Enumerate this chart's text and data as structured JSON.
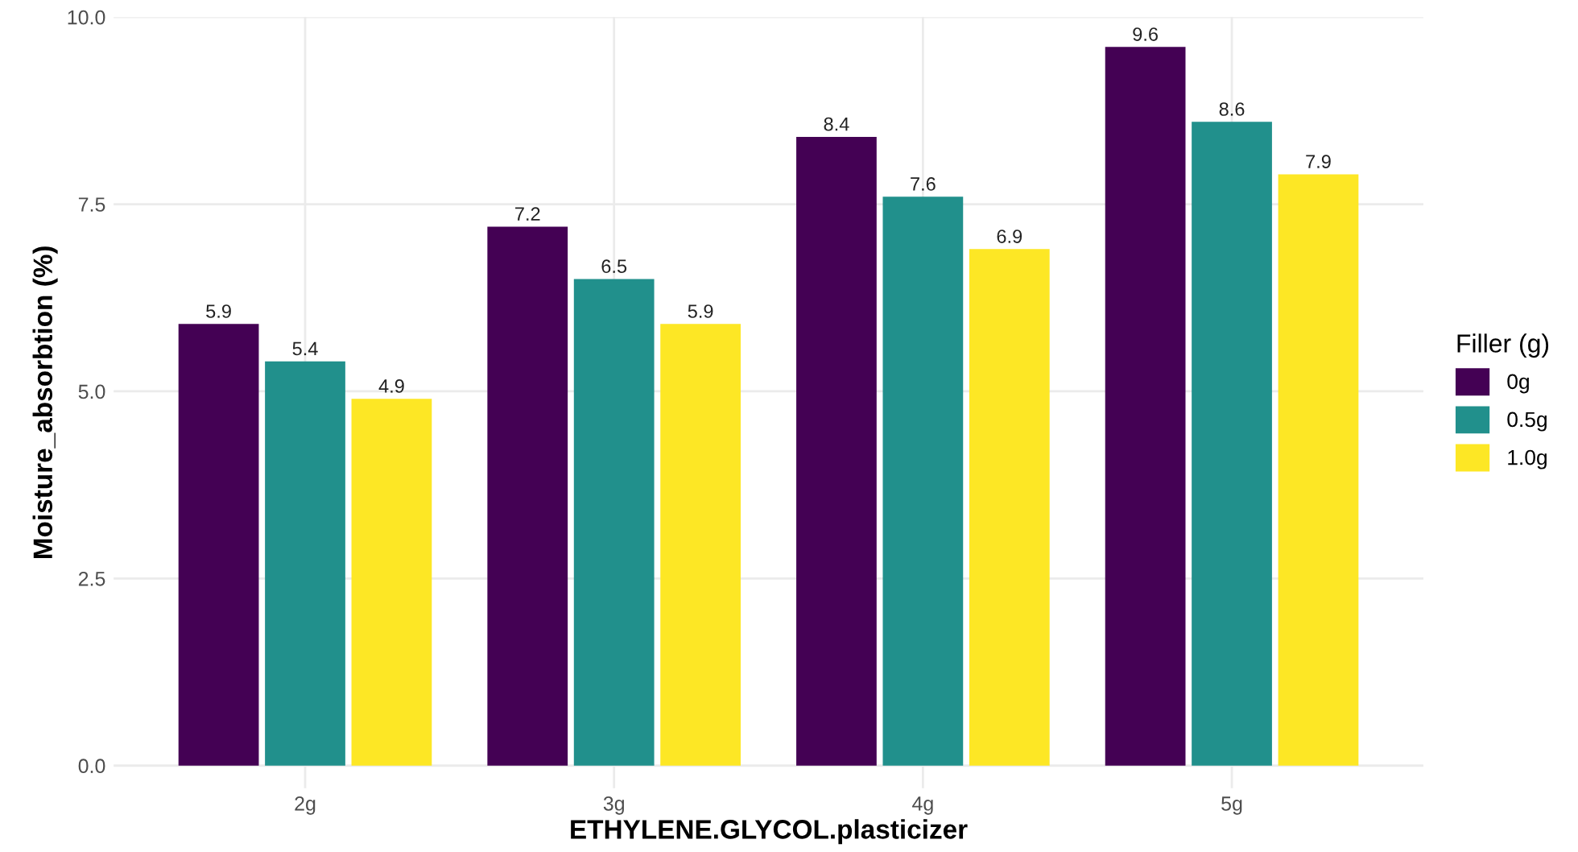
{
  "chart_data": {
    "type": "bar",
    "xlabel": "ETHYLENE.GLYCOL.plasticizer",
    "ylabel": "Moisture_absorbtion (%)",
    "legend_title": "Filler (g)",
    "categories": [
      "2g",
      "3g",
      "4g",
      "5g"
    ],
    "series": [
      {
        "name": "0g",
        "color": "#440154",
        "values": [
          5.9,
          7.2,
          8.4,
          9.6
        ]
      },
      {
        "name": "0.5g",
        "color": "#21908c",
        "values": [
          5.4,
          6.5,
          7.6,
          8.6
        ]
      },
      {
        "name": "1.0g",
        "color": "#fde725",
        "values": [
          4.9,
          5.9,
          6.9,
          7.9
        ]
      }
    ],
    "ylim": [
      -0.3,
      10.0
    ],
    "yticks": [
      {
        "value": 0,
        "label": "0.0"
      },
      {
        "value": 2.5,
        "label": "2.5"
      },
      {
        "value": 5,
        "label": "5.0"
      },
      {
        "value": 7.5,
        "label": "7.5"
      },
      {
        "value": 10,
        "label": "10.0"
      }
    ],
    "grid": true,
    "legend": "right",
    "data_labels": true
  }
}
